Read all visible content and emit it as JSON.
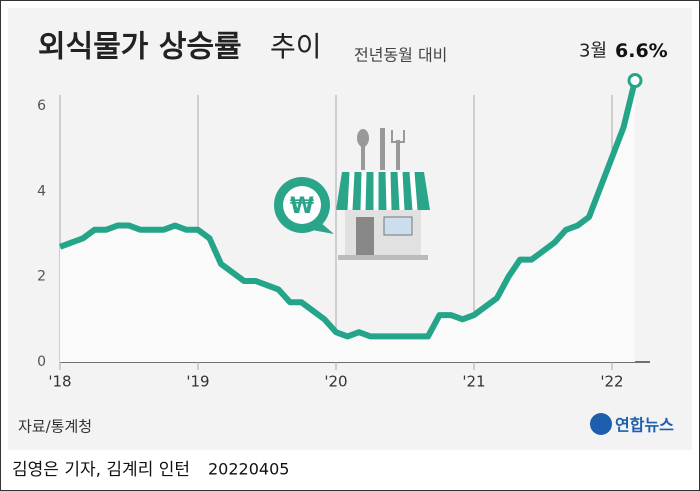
{
  "chart_data": {
    "type": "line",
    "title": "외식물가 상승률",
    "title_suffix": "추이",
    "subtitle": "전년동월 대비",
    "categories": [
      "'18",
      null,
      null,
      null,
      null,
      null,
      null,
      null,
      null,
      null,
      null,
      null,
      "'19",
      null,
      null,
      null,
      null,
      null,
      null,
      null,
      null,
      null,
      null,
      null,
      "'20",
      null,
      null,
      null,
      null,
      null,
      null,
      null,
      null,
      null,
      null,
      null,
      "'21",
      null,
      null,
      null,
      null,
      null,
      null,
      null,
      null,
      null,
      null,
      null,
      "'22",
      null,
      null
    ],
    "series": [
      {
        "color": "#24a58a",
        "values": [
          2.7,
          2.8,
          2.9,
          3.1,
          3.1,
          3.2,
          3.2,
          3.1,
          3.1,
          3.1,
          3.2,
          3.1,
          3.1,
          2.9,
          2.3,
          2.1,
          1.9,
          1.9,
          1.8,
          1.7,
          1.4,
          1.4,
          1.2,
          1.0,
          0.7,
          0.6,
          0.7,
          0.6,
          0.6,
          0.6,
          0.6,
          0.6,
          0.6,
          1.1,
          1.1,
          1.0,
          1.1,
          1.3,
          1.5,
          2.0,
          2.4,
          2.4,
          2.6,
          2.8,
          3.1,
          3.2,
          3.4,
          4.1,
          4.8,
          5.5,
          6.6
        ],
        "value_labels": [
          null,
          null,
          null,
          null,
          null,
          null,
          null,
          null,
          null,
          null,
          null,
          null,
          null,
          null,
          null,
          null,
          null,
          null,
          null,
          null,
          null,
          null,
          null,
          null,
          null,
          null,
          null,
          null,
          null,
          null,
          null,
          null,
          null,
          null,
          null,
          null,
          null,
          null,
          null,
          null,
          null,
          null,
          null,
          null,
          null,
          null,
          null,
          null,
          null,
          null,
          "6.6%"
        ]
      }
    ],
    "annotation": "3월",
    "ylim": [
      0,
      6.8
    ],
    "yticks": [
      0,
      2,
      4,
      6
    ],
    "source": "자료/통계청",
    "logo": "연합뉴스",
    "byline": "김영은 기자, 김계리 인턴",
    "date": "20220405"
  }
}
